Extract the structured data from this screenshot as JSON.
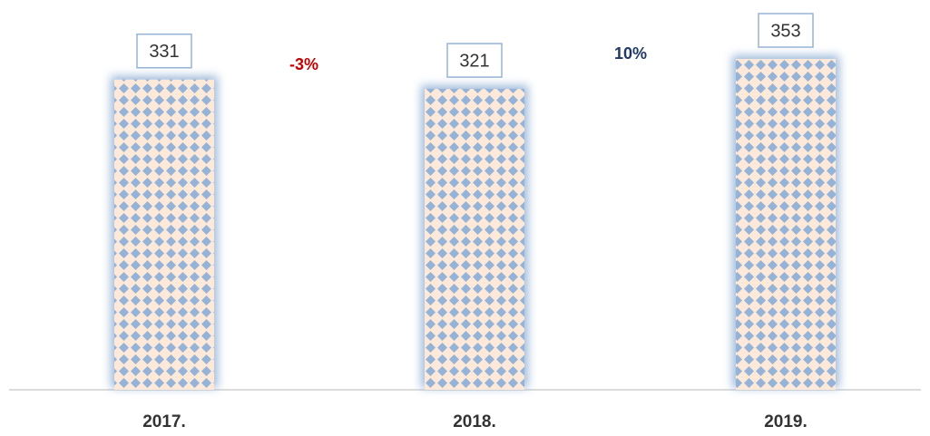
{
  "chart_data": {
    "type": "bar",
    "categories": [
      "2017.",
      "2018.",
      "2019."
    ],
    "values": [
      331,
      321,
      353
    ],
    "color": "#95b3d7",
    "pattern_background": "#fde9d9",
    "annotations": [
      {
        "text": "-3%",
        "color": "#c00000"
      },
      {
        "text": "10%",
        "color": "#1f3864"
      }
    ]
  }
}
